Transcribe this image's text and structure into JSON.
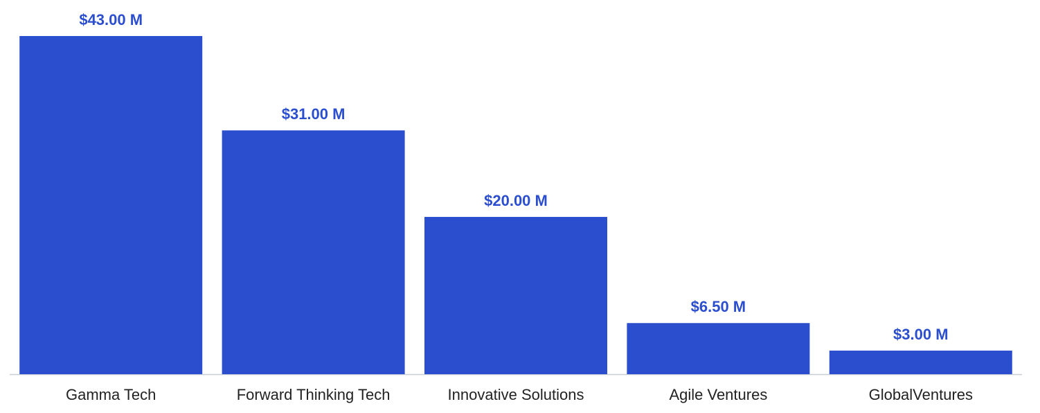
{
  "chart_data": {
    "type": "bar",
    "categories": [
      "Gamma Tech",
      "Forward Thinking Tech",
      "Innovative Solutions",
      "Agile Ventures",
      "GlobalVentures"
    ],
    "values": [
      43,
      31,
      20,
      6.5,
      3
    ],
    "value_labels": [
      "$43.00 M",
      "$31.00 M",
      "$20.00 M",
      "$6.50 M",
      "$3.00 M"
    ],
    "color": "#2b4ecf"
  }
}
